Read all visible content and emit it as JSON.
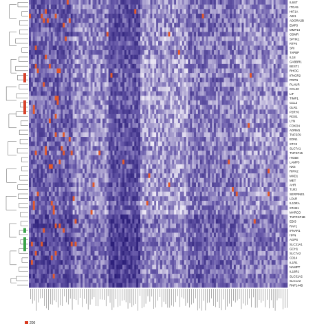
{
  "chart_data": {
    "type": "heatmap",
    "title": "",
    "xlabel": "",
    "ylabel": "",
    "row_labels": [
      "IL6ST",
      "ITGA5",
      "HIF1A",
      "ABI1",
      "ADORA2B",
      "EMP3",
      "MMP14",
      "OSMR",
      "SPHK1",
      "RTP4",
      "SRI",
      "TAPBP",
      "IL18",
      "GABBR1",
      "BEST1",
      "RHOG",
      "IFNGR2",
      "PDPN",
      "PLAUR",
      "CCL20",
      "LIF",
      "TIMP1",
      "CCL2",
      "OLR1",
      "P2RY6",
      "RGS1",
      "LYN",
      "FOXO4",
      "ADRM1",
      "TNFSF9",
      "EDN1",
      "STC2",
      "SLC7A1",
      "TNFSF15",
      "ITGB8",
      "LAMP3",
      "NX6",
      "RIPK2",
      "MXD1",
      "MET",
      "AHR",
      "TLR3",
      "SERPINE1",
      "LDLR",
      "IL10RA",
      "STAB1",
      "MARCO",
      "TNFRSF1B",
      "EBI3",
      "RAF1",
      "IFNAR1",
      "HPN",
      "AGPS",
      "SLC31A1",
      "GCH1",
      "SLC7A2",
      "CD14",
      "IL1R1",
      "NAMPT",
      "IL18R1",
      "SLC31A2",
      "SLC1A2",
      "RNF144B"
    ],
    "n_columns": 130,
    "color_scale": {
      "low": "#eeeaf6",
      "mid": "#6a5cab",
      "high": "#2c1f7a",
      "outlier": "#e2582a"
    },
    "legend": {
      "label": "200",
      "color": "#d83a1e",
      "position": "bottom-left"
    }
  }
}
